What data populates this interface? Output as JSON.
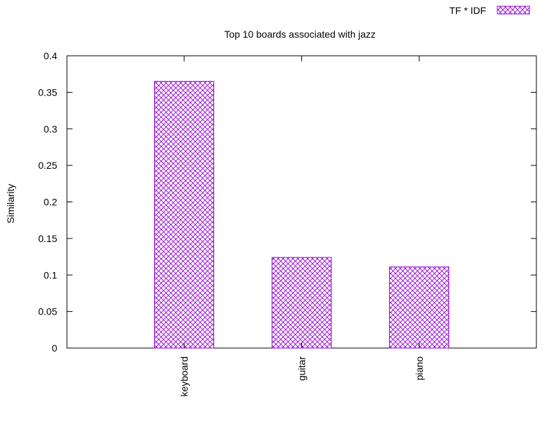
{
  "chart_data": {
    "type": "bar",
    "title": "Top 10 boards associated with jazz",
    "xlabel": "",
    "ylabel": "Similarity",
    "categories": [
      "keyboard",
      "guitar",
      "piano"
    ],
    "series": [
      {
        "name": "TF * IDF",
        "values": [
          0.365,
          0.124,
          0.111
        ]
      }
    ],
    "ylim": [
      0,
      0.4
    ],
    "yticks": [
      "0",
      "0.05",
      "0.1",
      "0.15",
      "0.2",
      "0.25",
      "0.3",
      "0.35",
      "0.4"
    ],
    "grid": false,
    "legend_position": "top-right",
    "bar_fill": "crosshatch",
    "colors": {
      "bar": "#9400d3",
      "axis": "#000000",
      "background": "#ffffff"
    }
  }
}
